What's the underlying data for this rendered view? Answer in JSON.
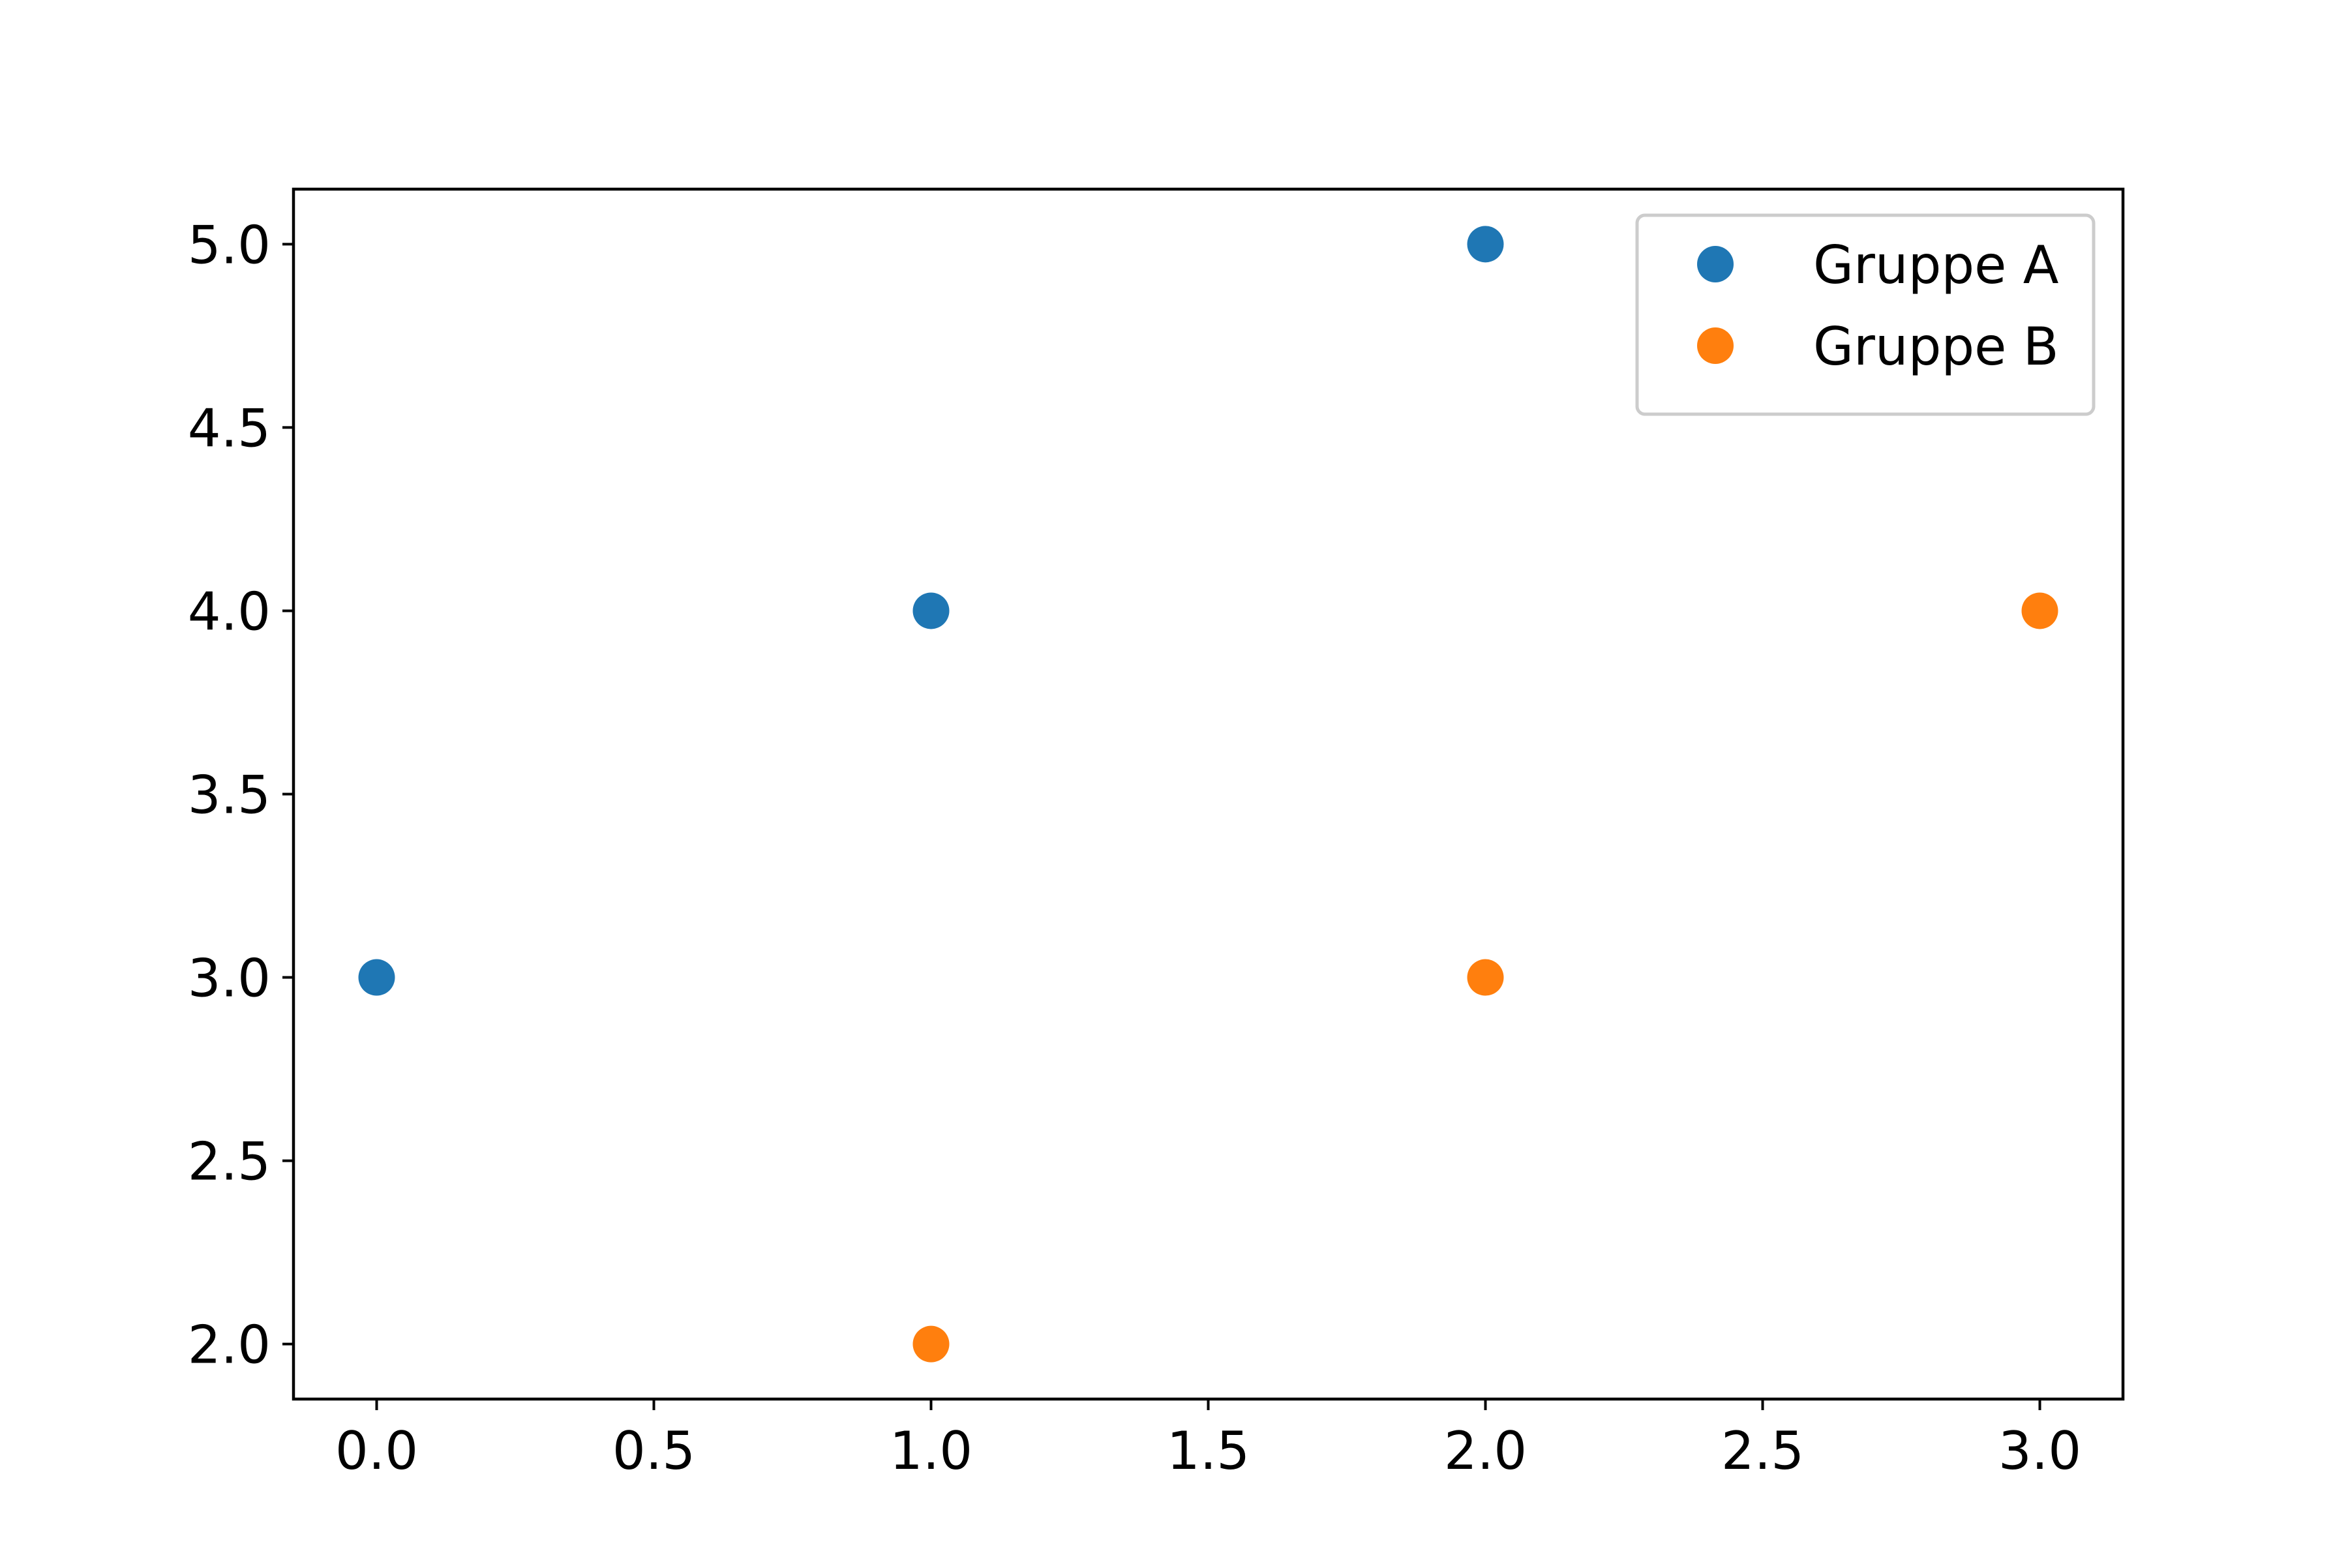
{
  "chart_data": {
    "type": "scatter",
    "title": "",
    "xlabel": "",
    "ylabel": "",
    "xlim": [
      -0.15,
      3.15
    ],
    "ylim": [
      1.85,
      5.15
    ],
    "xticks": [
      0.0,
      0.5,
      1.0,
      1.5,
      2.0,
      2.5,
      3.0
    ],
    "xtick_labels": [
      "0.0",
      "0.5",
      "1.0",
      "1.5",
      "2.0",
      "2.5",
      "3.0"
    ],
    "yticks": [
      2.0,
      2.5,
      3.0,
      3.5,
      4.0,
      4.5,
      5.0
    ],
    "ytick_labels": [
      "2.0",
      "2.5",
      "3.0",
      "3.5",
      "4.0",
      "4.5",
      "5.0"
    ],
    "grid": false,
    "legend_position": "top-right",
    "series": [
      {
        "name": "Gruppe A",
        "color": "#1f77b4",
        "points": [
          {
            "x": 0,
            "y": 3
          },
          {
            "x": 1,
            "y": 4
          },
          {
            "x": 2,
            "y": 5
          }
        ]
      },
      {
        "name": "Gruppe B",
        "color": "#ff7f0e",
        "points": [
          {
            "x": 1,
            "y": 2
          },
          {
            "x": 2,
            "y": 3
          },
          {
            "x": 3,
            "y": 4
          }
        ]
      }
    ]
  }
}
